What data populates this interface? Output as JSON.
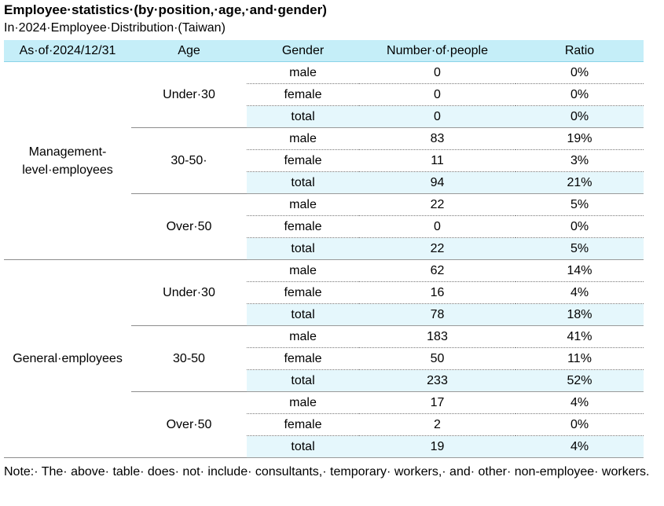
{
  "title": "Employee·statistics·(by·position,·age,·and·gender)",
  "subtitle": "In·2024·Employee·Distribution·(Taiwan)",
  "headers": {
    "date": "As·of·2024/12/31",
    "age": "Age",
    "gender": "Gender",
    "count": "Number·of·people",
    "ratio": "Ratio"
  },
  "groups": [
    {
      "position": "Management-level·employees",
      "ages": [
        {
          "label": "Under·30",
          "rows": [
            {
              "gender": "male",
              "count": "0",
              "ratio": "0%"
            },
            {
              "gender": "female",
              "count": "0",
              "ratio": "0%"
            },
            {
              "gender": "total",
              "count": "0",
              "ratio": "0%"
            }
          ]
        },
        {
          "label": "30-50·",
          "rows": [
            {
              "gender": "male",
              "count": "83",
              "ratio": "19%"
            },
            {
              "gender": "female",
              "count": "11",
              "ratio": "3%"
            },
            {
              "gender": "total",
              "count": "94",
              "ratio": "21%"
            }
          ]
        },
        {
          "label": "Over·50",
          "rows": [
            {
              "gender": "male",
              "count": "22",
              "ratio": "5%"
            },
            {
              "gender": "female",
              "count": "0",
              "ratio": "0%"
            },
            {
              "gender": "total",
              "count": "22",
              "ratio": "5%"
            }
          ]
        }
      ]
    },
    {
      "position": "General·employees",
      "ages": [
        {
          "label": "Under·30",
          "rows": [
            {
              "gender": "male",
              "count": "62",
              "ratio": "14%"
            },
            {
              "gender": "female",
              "count": "16",
              "ratio": "4%"
            },
            {
              "gender": "total",
              "count": "78",
              "ratio": "18%"
            }
          ]
        },
        {
          "label": "30-50",
          "rows": [
            {
              "gender": "male",
              "count": "183",
              "ratio": "41%"
            },
            {
              "gender": "female",
              "count": "50",
              "ratio": "11%"
            },
            {
              "gender": "total",
              "count": "233",
              "ratio": "52%"
            }
          ]
        },
        {
          "label": "Over·50",
          "rows": [
            {
              "gender": "male",
              "count": "17",
              "ratio": "4%"
            },
            {
              "gender": "female",
              "count": "2",
              "ratio": "0%"
            },
            {
              "gender": "total",
              "count": "19",
              "ratio": "4%"
            }
          ]
        }
      ]
    }
  ],
  "note": "Note:· The· above· table· does· not· include· consultants,· temporary· workers,· and· other· non-employee· workers."
}
